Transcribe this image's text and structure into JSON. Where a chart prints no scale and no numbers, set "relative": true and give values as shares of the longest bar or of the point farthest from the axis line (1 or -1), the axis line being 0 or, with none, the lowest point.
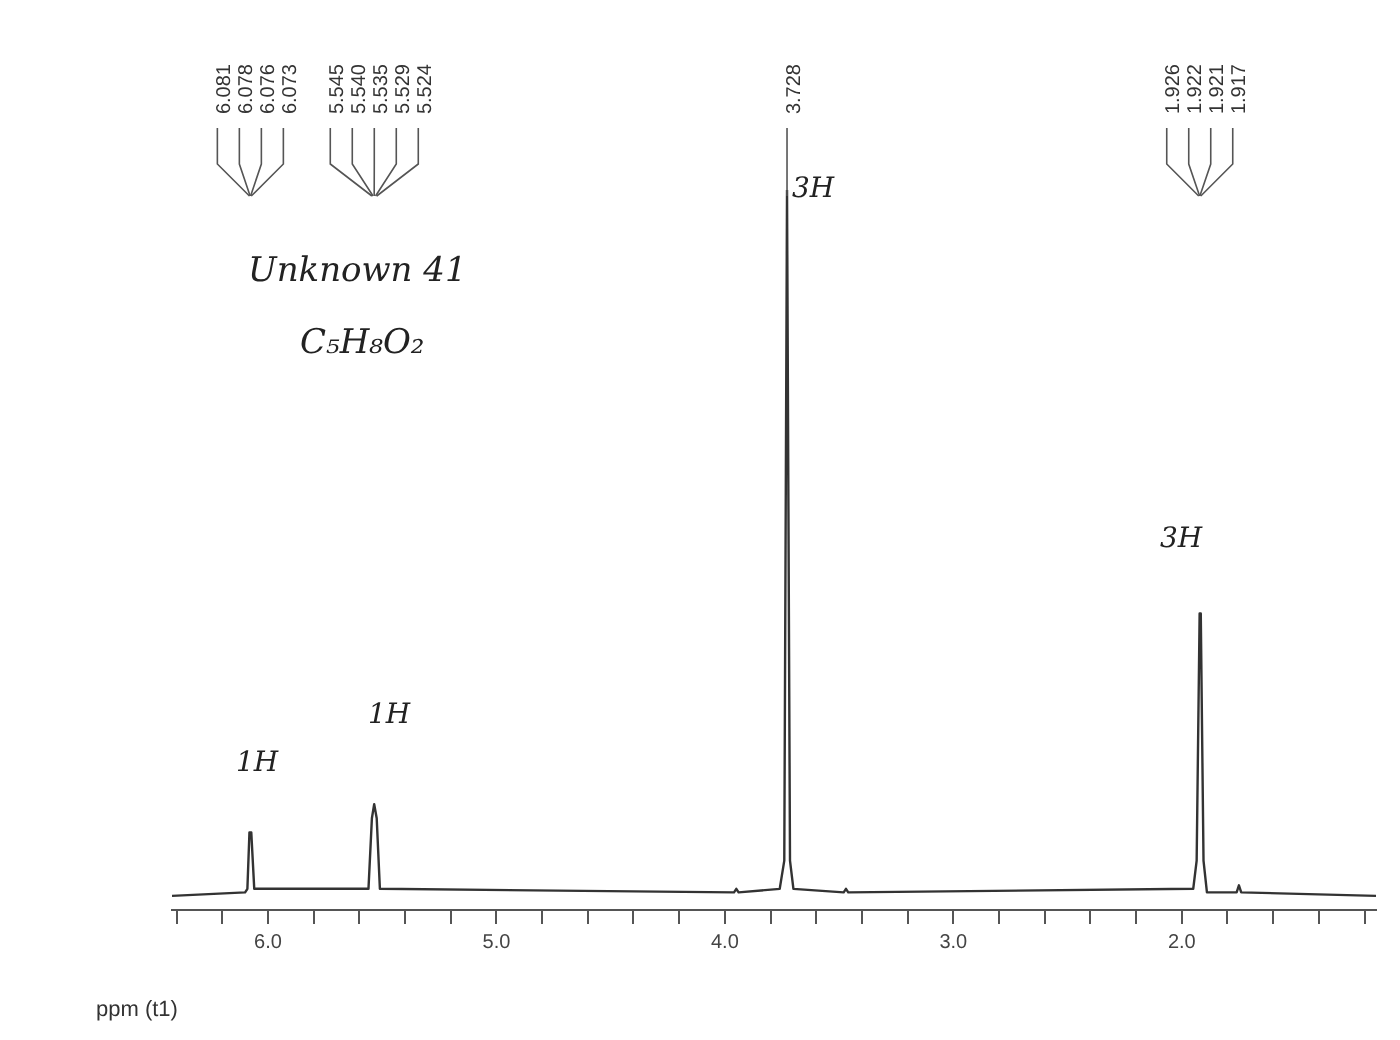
{
  "chart_data": {
    "type": "line",
    "relative": true,
    "xlabel": "ppm (t1)",
    "legend": false,
    "grid": false,
    "marker": "none",
    "line_style": "solid",
    "xlim": [
      6.42,
      1.15
    ],
    "xticks": [
      {
        "value": 6.4,
        "label": null
      },
      {
        "value": 6.2,
        "label": null
      },
      {
        "value": 6.0,
        "label": "6.0"
      },
      {
        "value": 5.8,
        "label": null
      },
      {
        "value": 5.6,
        "label": null
      },
      {
        "value": 5.4,
        "label": null
      },
      {
        "value": 5.2,
        "label": null
      },
      {
        "value": 5.0,
        "label": "5.0"
      },
      {
        "value": 4.8,
        "label": null
      },
      {
        "value": 4.6,
        "label": null
      },
      {
        "value": 4.4,
        "label": null
      },
      {
        "value": 4.2,
        "label": null
      },
      {
        "value": 4.0,
        "label": "4.0"
      },
      {
        "value": 3.8,
        "label": null
      },
      {
        "value": 3.6,
        "label": null
      },
      {
        "value": 3.4,
        "label": null
      },
      {
        "value": 3.2,
        "label": null
      },
      {
        "value": 3.0,
        "label": "3.0"
      },
      {
        "value": 2.8,
        "label": null
      },
      {
        "value": 2.6,
        "label": null
      },
      {
        "value": 2.4,
        "label": null
      },
      {
        "value": 2.2,
        "label": null
      },
      {
        "value": 2.0,
        "label": "2.0"
      },
      {
        "value": 1.8,
        "label": null
      },
      {
        "value": 1.6,
        "label": null
      },
      {
        "value": 1.4,
        "label": null
      },
      {
        "value": 1.2,
        "label": null
      }
    ],
    "tick_labels": "x",
    "series": [
      {
        "color": "#333333",
        "x": [
          6.42,
          6.1,
          6.09,
          6.081,
          6.073,
          6.06,
          5.56,
          5.545,
          5.535,
          5.524,
          5.51,
          3.96,
          3.95,
          3.94,
          3.76,
          3.74,
          3.728,
          3.715,
          3.7,
          3.48,
          3.47,
          3.46,
          1.95,
          1.935,
          1.922,
          1.917,
          1.905,
          1.89,
          1.76,
          1.75,
          1.74,
          1.15
        ],
        "values": [
          0,
          0.005,
          0.01,
          0.09,
          0.09,
          0.01,
          0.01,
          0.11,
          0.13,
          0.11,
          0.01,
          0.005,
          0.01,
          0.005,
          0.01,
          0.05,
          1,
          0.05,
          0.01,
          0.005,
          0.01,
          0.005,
          0.01,
          0.05,
          0.4,
          0.4,
          0.05,
          0.005,
          0.005,
          0.015,
          0.005,
          0
        ]
      }
    ],
    "annotations": [
      {
        "text": "6.081",
        "x": 6.081
      },
      {
        "text": "6.078",
        "x": 6.078
      },
      {
        "text": "6.076",
        "x": 6.076
      },
      {
        "text": "6.073",
        "x": 6.073
      },
      {
        "text": "5.545",
        "x": 5.545
      },
      {
        "text": "5.540",
        "x": 5.54
      },
      {
        "text": "5.535",
        "x": 5.535
      },
      {
        "text": "5.529",
        "x": 5.529
      },
      {
        "text": "5.524",
        "x": 5.524
      },
      {
        "text": "3.728",
        "x": 3.728
      },
      {
        "text": "1.926",
        "x": 1.926
      },
      {
        "text": "1.922",
        "x": 1.922
      },
      {
        "text": "1.921",
        "x": 1.921
      },
      {
        "text": "1.917",
        "x": 1.917
      },
      "1H",
      "1H",
      "3H",
      "3H",
      "Unknown 41",
      "C₅H₈O₂"
    ]
  }
}
